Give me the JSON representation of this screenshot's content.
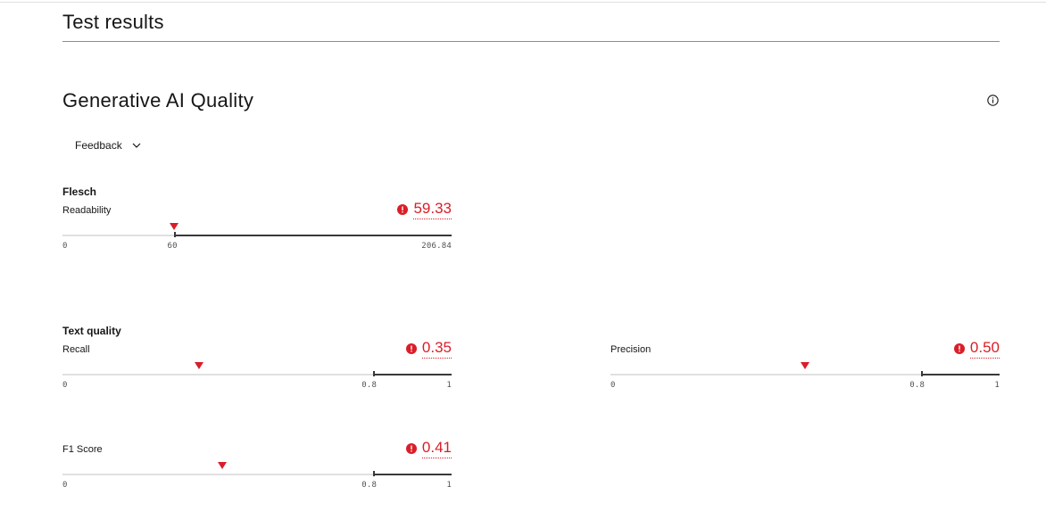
{
  "page": {
    "section_title": "Test results",
    "panel_title": "Generative AI Quality",
    "info_icon": "information-icon",
    "dropdown": {
      "label": "Feedback",
      "icon": "chevron-down-icon"
    }
  },
  "colors": {
    "alert": "#da1e28",
    "track": "#e0e0e0",
    "pass_range": "#393939"
  },
  "groups": {
    "flesch": {
      "title": "Flesch",
      "metrics": {
        "readability": {
          "label": "Readability",
          "value": "59.33",
          "value_num": 59.33,
          "min": 0,
          "max": 206.84,
          "threshold": 60,
          "min_label": "0",
          "threshold_label": "60",
          "max_label": "206.84",
          "status": "alert"
        }
      }
    },
    "text_quality": {
      "title": "Text quality",
      "metrics": {
        "recall": {
          "label": "Recall",
          "value": "0.35",
          "value_num": 0.35,
          "min": 0,
          "max": 1,
          "threshold": 0.8,
          "min_label": "0",
          "threshold_label": "0.8",
          "max_label": "1",
          "status": "alert"
        },
        "precision": {
          "label": "Precision",
          "value": "0.50",
          "value_num": 0.5,
          "min": 0,
          "max": 1,
          "threshold": 0.8,
          "min_label": "0",
          "threshold_label": "0.8",
          "max_label": "1",
          "status": "alert"
        },
        "f1": {
          "label": "F1 Score",
          "value": "0.41",
          "value_num": 0.41,
          "min": 0,
          "max": 1,
          "threshold": 0.8,
          "min_label": "0",
          "threshold_label": "0.8",
          "max_label": "1",
          "status": "alert"
        }
      }
    }
  }
}
